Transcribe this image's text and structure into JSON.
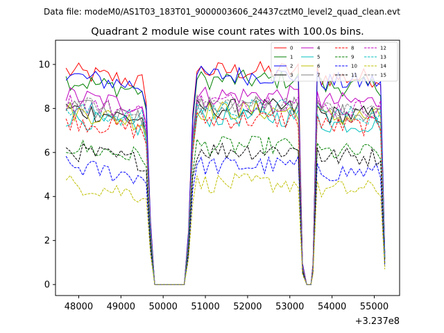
{
  "chart_data": {
    "type": "line",
    "suptitle": "Data file: modeM0/AS1T03_183T01_9000003606_24437cztM0_level2_quad_clean.evt",
    "title": "Quadrant 2 module wise count rates with 100.0s bins.",
    "xlabel": "",
    "ylabel": "",
    "x_offset_label": "+3.237e8",
    "xlim": [
      47450,
      55600
    ],
    "ylim": [
      -0.5,
      11.1
    ],
    "x_ticks": [
      48000,
      49000,
      50000,
      51000,
      52000,
      53000,
      54000,
      55000
    ],
    "x_tick_labels": [
      "48000",
      "49000",
      "50000",
      "51000",
      "52000",
      "53000",
      "54000",
      "55000"
    ],
    "y_ticks": [
      0,
      2,
      4,
      6,
      8,
      10
    ],
    "y_tick_labels": [
      "0",
      "2",
      "4",
      "6",
      "8",
      "10"
    ],
    "grid": false,
    "legend_position": "top-right",
    "segments": [
      {
        "start": 47700,
        "end": 49500,
        "step": 100
      },
      {
        "start": 50600,
        "end": 53200,
        "step": 100
      },
      {
        "start": 53650,
        "end": 55200,
        "step": 100
      }
    ],
    "gap_points": [
      {
        "x": 49600,
        "frac": 0.85
      },
      {
        "x": 49700,
        "frac": 0.3
      },
      {
        "x": 49800,
        "frac": 0
      },
      {
        "x": 50500,
        "frac": 0
      },
      {
        "x": 53300,
        "frac": 0.1
      },
      {
        "x": 53400,
        "frac": 0
      },
      {
        "x": 53500,
        "frac": 0
      },
      {
        "x": 53550,
        "frac": 0.1
      },
      {
        "x": 55250,
        "frac": 0.15
      }
    ],
    "series": [
      {
        "name": "0",
        "color": "#ff0000",
        "dash": "solid",
        "base": 9.7
      },
      {
        "name": "1",
        "color": "#008000",
        "dash": "solid",
        "base": 9.3
      },
      {
        "name": "2",
        "color": "#0000ff",
        "dash": "solid",
        "base": 9.5
      },
      {
        "name": "3",
        "color": "#000000",
        "dash": "solid",
        "base": 8.0
      },
      {
        "name": "4",
        "color": "#bf00bf",
        "dash": "solid",
        "base": 8.6
      },
      {
        "name": "5",
        "color": "#00bfbf",
        "dash": "solid",
        "base": 7.6
      },
      {
        "name": "6",
        "color": "#bfbf00",
        "dash": "solid",
        "base": 7.9
      },
      {
        "name": "7",
        "color": "#808080",
        "dash": "solid",
        "base": 8.1
      },
      {
        "name": "8",
        "color": "#ff0000",
        "dash": "dashed",
        "base": 7.5
      },
      {
        "name": "9",
        "color": "#008000",
        "dash": "dashed",
        "base": 6.3
      },
      {
        "name": "10",
        "color": "#0000ff",
        "dash": "dashed",
        "base": 5.4
      },
      {
        "name": "11",
        "color": "#000000",
        "dash": "dashed",
        "base": 6.1
      },
      {
        "name": "12",
        "color": "#bf00bf",
        "dash": "dashed",
        "base": 8.3
      },
      {
        "name": "13",
        "color": "#00bfbf",
        "dash": "dashed",
        "base": 8.0
      },
      {
        "name": "14",
        "color": "#bfbf00",
        "dash": "dashed",
        "base": 4.6
      },
      {
        "name": "15",
        "color": "#808080",
        "dash": "dashed",
        "base": 8.2
      }
    ]
  }
}
